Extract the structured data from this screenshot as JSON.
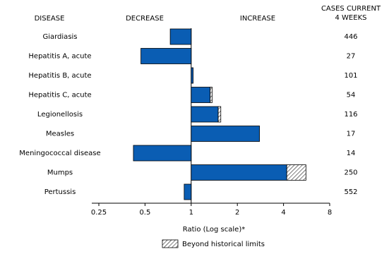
{
  "chart_data": {
    "type": "bar",
    "header_disease": "DISEASE",
    "header_decrease": "DECREASE",
    "header_increase": "INCREASE",
    "header_cases": [
      "CASES CURRENT",
      "4 WEEKS"
    ],
    "categories": [
      "Giardiasis",
      "Hepatitis A, acute",
      "Hepatitis B, acute",
      "Hepatitis C, acute",
      "Legionellosis",
      "Measles",
      "Meningococcal disease",
      "Mumps",
      "Pertussis"
    ],
    "values": [
      0.73,
      0.47,
      1.03,
      1.37,
      1.56,
      2.79,
      0.42,
      5.6,
      0.9
    ],
    "historical_limit": [
      null,
      null,
      null,
      1.33,
      1.5,
      null,
      null,
      4.2,
      null
    ],
    "cases": [
      "446",
      "27",
      "101",
      "54",
      "116",
      "17",
      "14",
      "250",
      "552"
    ],
    "color": "#0a5db3",
    "xlim": [
      0.25,
      8
    ],
    "xticks": [
      0.25,
      0.5,
      1,
      2,
      4,
      8
    ],
    "log_scale": true,
    "x_label": "Ratio (Log scale)*",
    "legend": "Beyond historical limits"
  }
}
